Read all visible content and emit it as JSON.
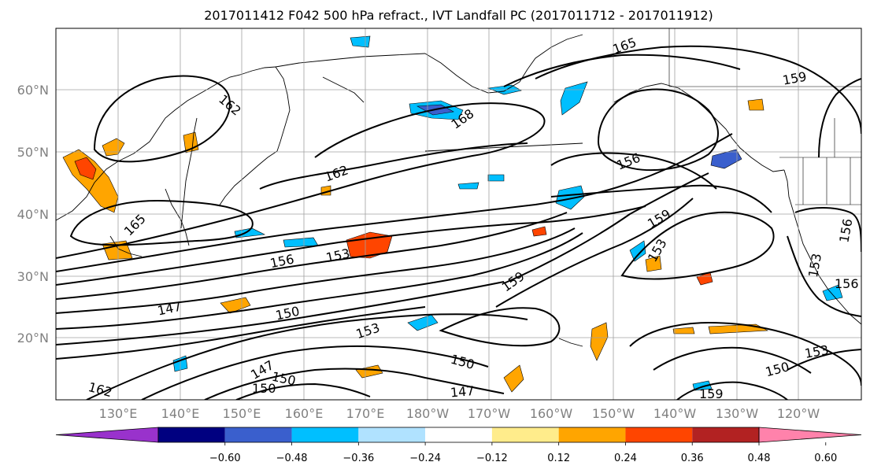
{
  "title": "2017011412 F042 500 hPa refract., IVT Landfall PC (2017011712 - 2017011912)",
  "lat_labels": [
    "60°N",
    "50°N",
    "40°N",
    "30°N",
    "20°N"
  ],
  "lon_labels": [
    "130°E",
    "140°E",
    "150°E",
    "160°E",
    "170°E",
    "180°W",
    "170°W",
    "160°W",
    "150°W",
    "140°W",
    "130°W",
    "120°W"
  ],
  "colorbar": {
    "ticks": [
      "−0.60",
      "−0.48",
      "−0.36",
      "−0.24",
      "−0.12",
      "0.12",
      "0.24",
      "0.36",
      "0.48",
      "0.60"
    ],
    "colors": [
      "#9932cc",
      "#000080",
      "#3a5fcd",
      "#00bfff",
      "#b0e2ff",
      "#ffffff",
      "#ffec8b",
      "#ffa500",
      "#ff4500",
      "#b22222",
      "#ff82ab"
    ]
  },
  "contour_labels": [
    {
      "text": "165"
    },
    {
      "text": "162"
    },
    {
      "text": "168"
    },
    {
      "text": "159"
    },
    {
      "text": "162"
    },
    {
      "text": "156"
    },
    {
      "text": "165"
    },
    {
      "text": "156"
    },
    {
      "text": "153"
    },
    {
      "text": "159"
    },
    {
      "text": "153"
    },
    {
      "text": "147"
    },
    {
      "text": "150"
    },
    {
      "text": "153"
    },
    {
      "text": "159"
    },
    {
      "text": "150"
    },
    {
      "text": "147"
    },
    {
      "text": "147"
    },
    {
      "text": "150"
    },
    {
      "text": "150"
    },
    {
      "text": "150"
    },
    {
      "text": "153"
    },
    {
      "text": "159"
    },
    {
      "text": "156"
    },
    {
      "text": "153"
    },
    {
      "text": "156"
    },
    {
      "text": "162"
    }
  ]
}
